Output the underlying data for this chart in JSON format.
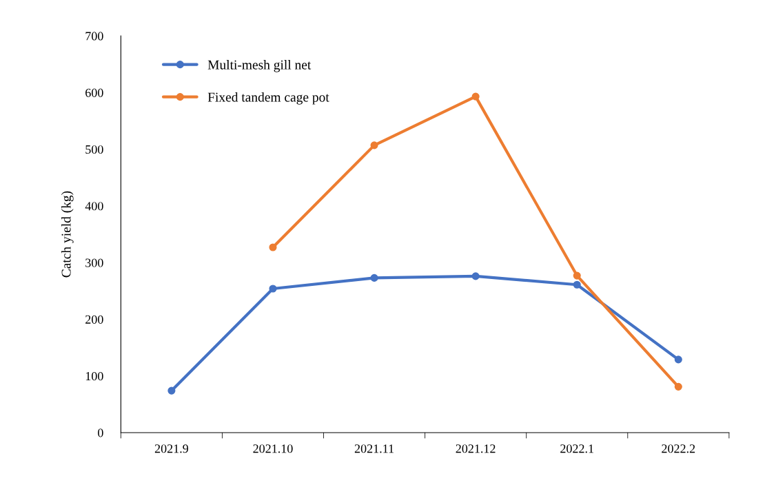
{
  "chart_data": {
    "type": "line",
    "ylabel": "Catch yield (kg)",
    "categories": [
      "2021.9",
      "2021.10",
      "2021.11",
      "2021.12",
      "2022.1",
      "2022.2"
    ],
    "series": [
      {
        "name": "Multi-mesh gill net",
        "color": "#4472c4",
        "values": [
          74,
          254,
          273,
          276,
          261,
          129
        ]
      },
      {
        "name": "Fixed tandem cage pot",
        "color": "#ed7d31",
        "values": [
          null,
          327,
          507,
          593,
          277,
          81
        ]
      }
    ],
    "ylim": [
      0,
      700
    ],
    "yticks": [
      0,
      100,
      200,
      300,
      400,
      500,
      600,
      700
    ],
    "grid": false,
    "legend": "top left",
    "marker": "circle",
    "line_style": "solid"
  }
}
